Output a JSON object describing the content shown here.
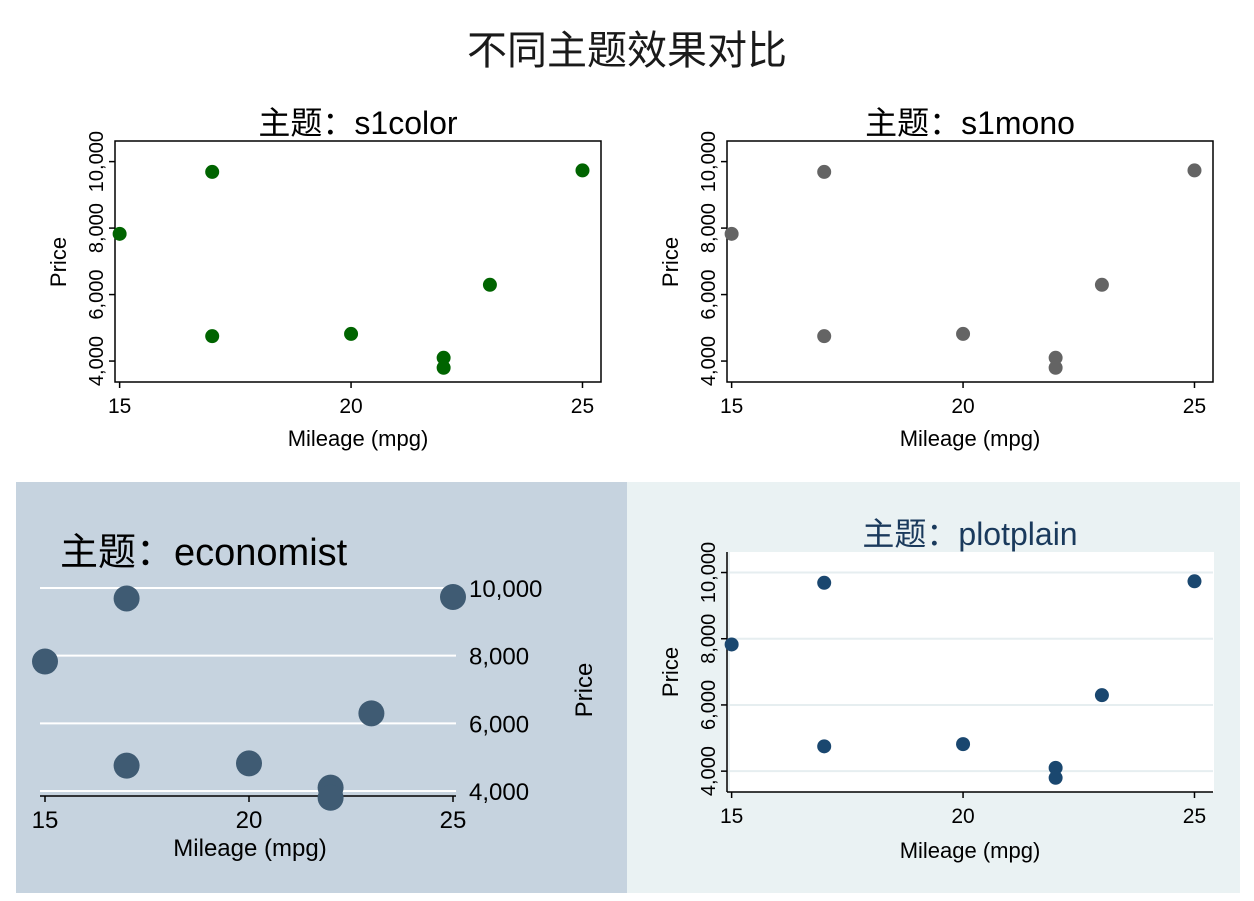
{
  "main_title": "不同主题效果对比",
  "chart_data": [
    {
      "type": "scatter",
      "theme": "s1color",
      "title": "主题：s1color",
      "xlabel": "Mileage (mpg)",
      "ylabel": "Price",
      "xticks": [
        "15",
        "20",
        "25"
      ],
      "yticks": [
        "4,000",
        "6,000",
        "8,000",
        "10,000"
      ],
      "xlim": [
        14.9,
        25.4
      ],
      "ylim": [
        3370,
        10620
      ],
      "x": [
        15,
        17,
        17,
        20,
        22,
        22,
        23,
        25
      ],
      "y": [
        7827,
        9690,
        4749,
        4816,
        4099,
        3799,
        6295,
        9735
      ],
      "marker_color": "#006400"
    },
    {
      "type": "scatter",
      "theme": "s1mono",
      "title": "主题：s1mono",
      "xlabel": "Mileage (mpg)",
      "ylabel": "Price",
      "xticks": [
        "15",
        "20",
        "25"
      ],
      "yticks": [
        "4,000",
        "6,000",
        "8,000",
        "10,000"
      ],
      "xlim": [
        14.9,
        25.4
      ],
      "ylim": [
        3370,
        10620
      ],
      "x": [
        15,
        17,
        17,
        20,
        22,
        22,
        23,
        25
      ],
      "y": [
        7827,
        9690,
        4749,
        4816,
        4099,
        3799,
        6295,
        9735
      ],
      "marker_color": "#646464"
    },
    {
      "type": "scatter",
      "theme": "economist",
      "title": "主题：economist",
      "xlabel": "Mileage (mpg)",
      "ylabel": "Price",
      "xticks": [
        "15",
        "20",
        "25"
      ],
      "yticks": [
        "4,000",
        "6,000",
        "8,000",
        "10,000"
      ],
      "xlim": [
        14.9,
        25.1
      ],
      "ylim": [
        3900,
        10050
      ],
      "x": [
        15,
        17,
        17,
        20,
        22,
        22,
        23,
        25
      ],
      "y": [
        7827,
        9690,
        4749,
        4816,
        4099,
        3799,
        6295,
        9735
      ],
      "marker_color": "#3f5b73",
      "background": "#c6d3df"
    },
    {
      "type": "scatter",
      "theme": "plotplain",
      "title": "主题：plotplain",
      "xlabel": "Mileage (mpg)",
      "ylabel": "Price",
      "xticks": [
        "15",
        "20",
        "25"
      ],
      "yticks": [
        "4,000",
        "6,000",
        "8,000",
        "10,000"
      ],
      "xlim": [
        14.9,
        25.4
      ],
      "ylim": [
        3370,
        10620
      ],
      "x": [
        15,
        17,
        17,
        20,
        22,
        22,
        23,
        25
      ],
      "y": [
        7827,
        9690,
        4749,
        4816,
        4099,
        3799,
        6295,
        9735
      ],
      "marker_color": "#1a476f",
      "background": "#eaf2f3"
    }
  ]
}
